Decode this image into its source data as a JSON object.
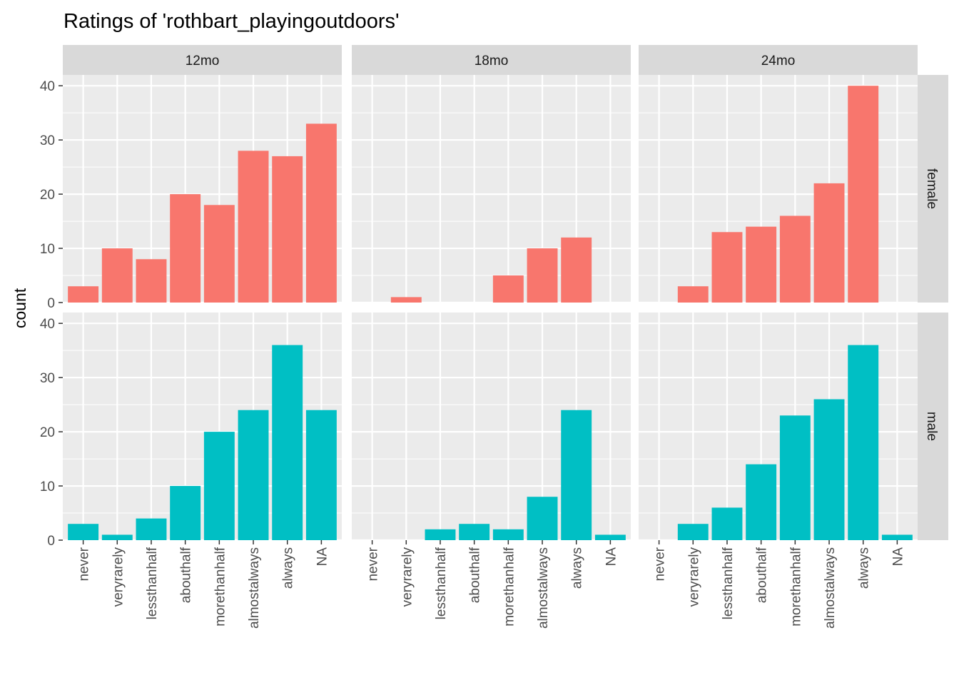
{
  "chart_data": {
    "type": "bar",
    "title": "Ratings of 'rothbart_playingoutdoors'",
    "xlabel": "",
    "ylabel": "count",
    "ylim": [
      0,
      42
    ],
    "yticks": [
      0,
      10,
      20,
      30,
      40
    ],
    "grid": true,
    "legend": "none",
    "categories": [
      "never",
      "veryrarely",
      "lessthanhalf",
      "abouthalf",
      "morethanhalf",
      "almostalways",
      "always",
      "NA"
    ],
    "col_facets": [
      "12mo",
      "18mo",
      "24mo"
    ],
    "row_facets": [
      "female",
      "male"
    ],
    "colors": {
      "female": "#F8766D",
      "male": "#00BFC4",
      "panel_bg": "#EBEBEB",
      "grid": "#FFFFFF",
      "strip_bg": "#D9D9D9"
    },
    "panels": [
      {
        "row": "female",
        "col": "12mo",
        "values": [
          3,
          10,
          8,
          20,
          18,
          28,
          27,
          33
        ]
      },
      {
        "row": "female",
        "col": "18mo",
        "values": [
          0,
          1,
          0,
          0,
          5,
          10,
          12,
          0
        ]
      },
      {
        "row": "female",
        "col": "24mo",
        "values": [
          0,
          3,
          13,
          14,
          16,
          22,
          40,
          0
        ]
      },
      {
        "row": "male",
        "col": "12mo",
        "values": [
          3,
          1,
          4,
          10,
          20,
          24,
          36,
          24
        ]
      },
      {
        "row": "male",
        "col": "18mo",
        "values": [
          0,
          0,
          2,
          3,
          2,
          8,
          24,
          1
        ]
      },
      {
        "row": "male",
        "col": "24mo",
        "values": [
          0,
          3,
          6,
          14,
          23,
          26,
          36,
          1
        ]
      }
    ]
  }
}
